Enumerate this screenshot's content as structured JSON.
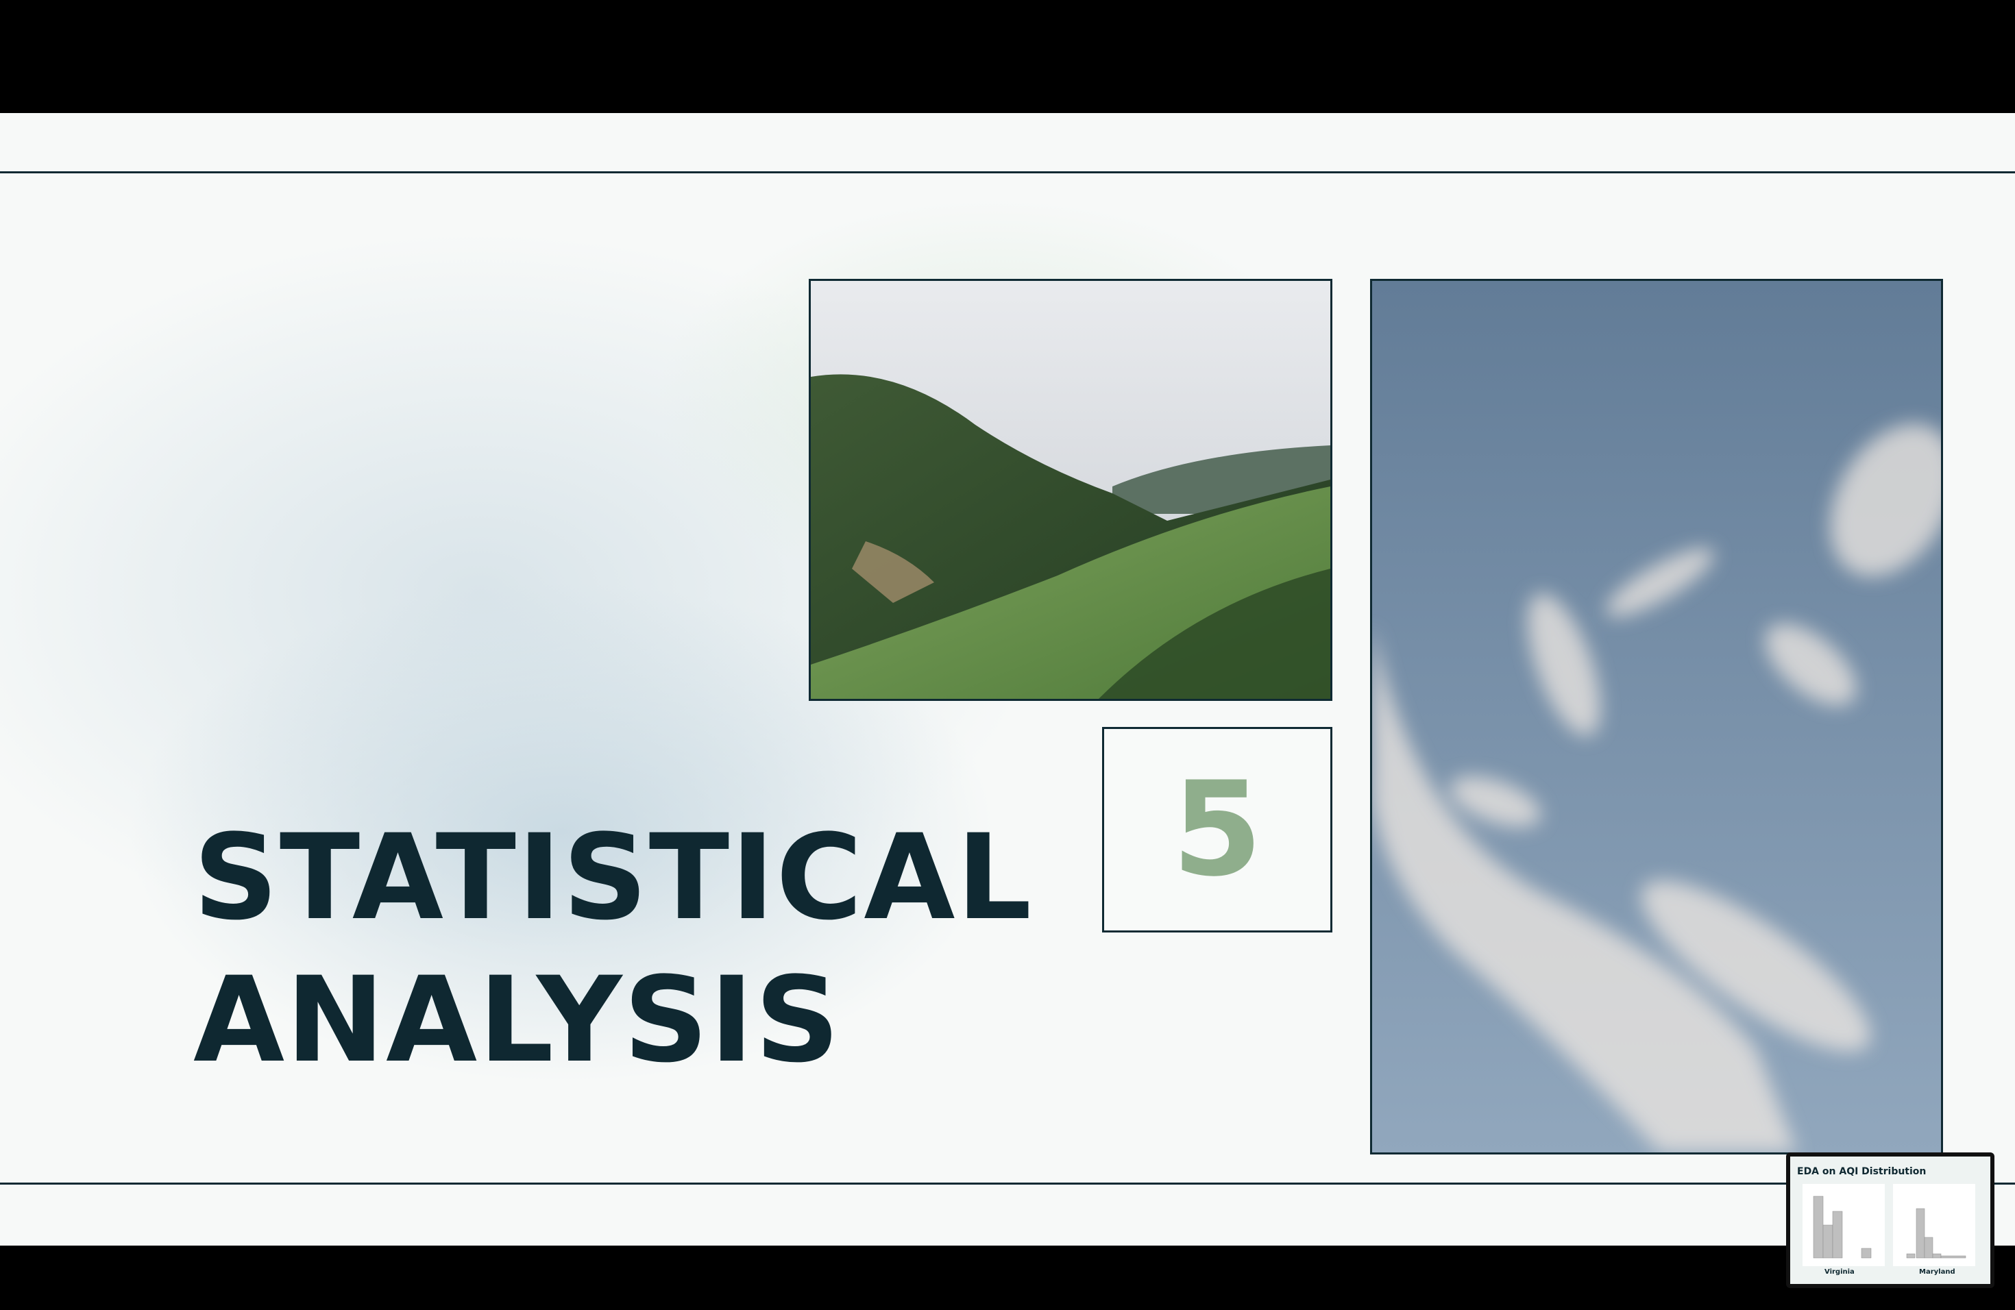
{
  "slide": {
    "title_line1": "STATISTICAL",
    "title_line2": "ANALYSIS",
    "section_number": "5"
  },
  "images": {
    "landscape": "green-mountain-valley-photo",
    "sky": "blue-sky-clouds-photo"
  },
  "thumbnail": {
    "title": "EDA on AQI Distribution",
    "left_caption": "Virginia",
    "right_caption": "Maryland"
  },
  "colors": {
    "title": "#0f2831",
    "accent_number": "#8fae8c",
    "rule": "#0f2a33"
  }
}
